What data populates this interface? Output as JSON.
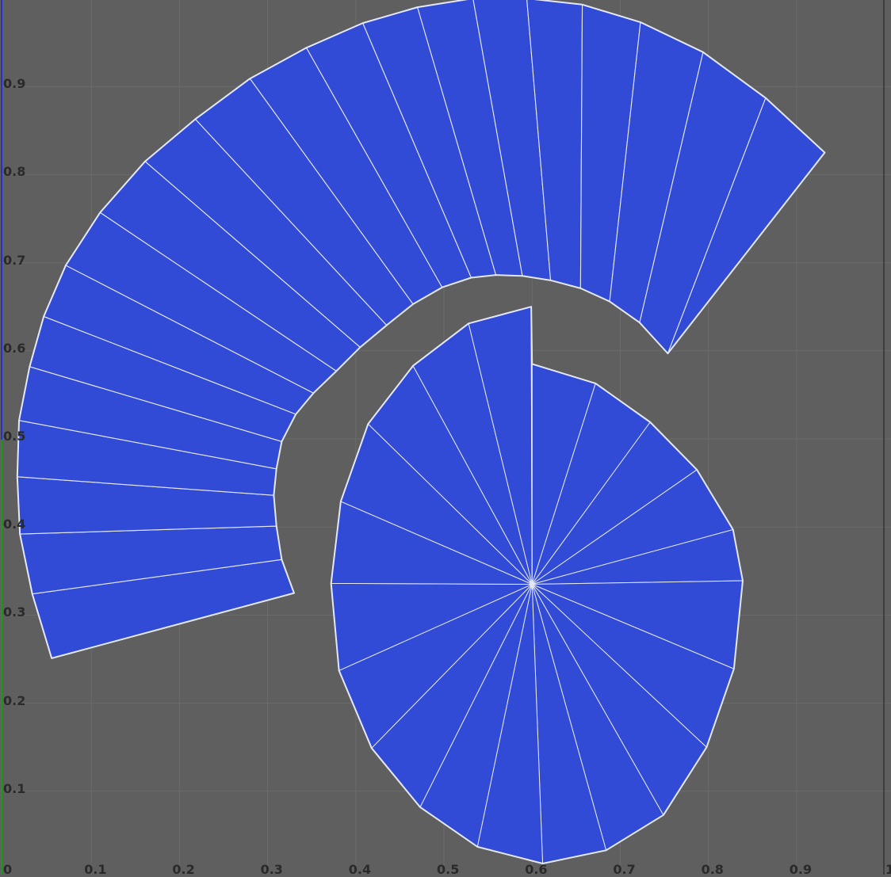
{
  "editor": {
    "title": "",
    "background_color": "#5f5f5f",
    "grid_color": "#6b6b6b",
    "mesh_fill_color": "#324bd6",
    "mesh_edge_color": "#e4e8f4",
    "u_axis_color": "#1a9a1a",
    "v_axis_color": "#2233cc",
    "axis_range": [
      0,
      1
    ]
  },
  "axes": {
    "x_ticks": [
      {
        "value": 0,
        "label": "0"
      },
      {
        "value": 0.1,
        "label": "0.1"
      },
      {
        "value": 0.2,
        "label": "0.2"
      },
      {
        "value": 0.3,
        "label": "0.3"
      },
      {
        "value": 0.4,
        "label": "0.4"
      },
      {
        "value": 0.5,
        "label": "0.5"
      },
      {
        "value": 0.6,
        "label": "0.6"
      },
      {
        "value": 0.7,
        "label": "0.7"
      },
      {
        "value": 0.8,
        "label": "0.8"
      },
      {
        "value": 0.9,
        "label": "0.9"
      }
    ],
    "y_ticks": [
      {
        "value": 0.1,
        "label": "0.1"
      },
      {
        "value": 0.2,
        "label": "0.2"
      },
      {
        "value": 0.3,
        "label": "0.3"
      },
      {
        "value": 0.4,
        "label": "0.4"
      },
      {
        "value": 0.5,
        "label": "0.5"
      },
      {
        "value": 0.6,
        "label": "0.6"
      },
      {
        "value": 0.7,
        "label": "0.7"
      },
      {
        "value": 0.8,
        "label": "0.8"
      },
      {
        "value": 0.9,
        "label": "0.9"
      }
    ],
    "right_edge_label": "1"
  },
  "uv_islands": {
    "cap_disc": {
      "name": "",
      "center_uv": [
        0.6,
        0.335
      ],
      "rim_uv": [
        [
          0.6,
          0.585
        ],
        [
          0.672,
          0.563
        ],
        [
          0.734,
          0.519
        ],
        [
          0.787,
          0.465
        ],
        [
          0.828,
          0.397
        ],
        [
          0.839,
          0.339
        ],
        [
          0.829,
          0.239
        ],
        [
          0.798,
          0.15
        ],
        [
          0.749,
          0.073
        ],
        [
          0.684,
          0.033
        ],
        [
          0.612,
          0.018
        ],
        [
          0.538,
          0.037
        ],
        [
          0.473,
          0.082
        ],
        [
          0.418,
          0.149
        ],
        [
          0.381,
          0.237
        ],
        [
          0.372,
          0.336
        ],
        [
          0.383,
          0.429
        ],
        [
          0.414,
          0.517
        ],
        [
          0.465,
          0.583
        ],
        [
          0.528,
          0.631
        ],
        [
          0.599,
          0.65
        ]
      ]
    },
    "side_strip": {
      "name": "",
      "outer_edge_uv": [
        [
          0.055,
          0.251
        ],
        [
          0.033,
          0.324
        ],
        [
          0.019,
          0.392
        ],
        [
          0.016,
          0.457
        ],
        [
          0.018,
          0.521
        ],
        [
          0.03,
          0.582
        ],
        [
          0.046,
          0.639
        ],
        [
          0.071,
          0.697
        ],
        [
          0.11,
          0.757
        ],
        [
          0.161,
          0.815
        ],
        [
          0.218,
          0.863
        ],
        [
          0.28,
          0.909
        ],
        [
          0.344,
          0.944
        ],
        [
          0.408,
          0.972
        ],
        [
          0.47,
          0.99
        ],
        [
          0.533,
          1.0
        ],
        [
          0.594,
          1.0
        ],
        [
          0.657,
          0.993
        ],
        [
          0.723,
          0.973
        ],
        [
          0.794,
          0.939
        ],
        [
          0.865,
          0.887
        ],
        [
          0.932,
          0.825
        ]
      ],
      "inner_edge_uv": [
        [
          0.33,
          0.325
        ],
        [
          0.316,
          0.363
        ],
        [
          0.31,
          0.401
        ],
        [
          0.307,
          0.436
        ],
        [
          0.31,
          0.466
        ],
        [
          0.316,
          0.497
        ],
        [
          0.332,
          0.528
        ],
        [
          0.352,
          0.552
        ],
        [
          0.378,
          0.577
        ],
        [
          0.405,
          0.604
        ],
        [
          0.435,
          0.629
        ],
        [
          0.465,
          0.653
        ],
        [
          0.498,
          0.672
        ],
        [
          0.531,
          0.683
        ],
        [
          0.559,
          0.686
        ],
        [
          0.589,
          0.685
        ],
        [
          0.621,
          0.68
        ],
        [
          0.655,
          0.671
        ],
        [
          0.688,
          0.656
        ],
        [
          0.722,
          0.632
        ],
        [
          0.754,
          0.597
        ]
      ],
      "end_edge_uv": [
        0.932,
        0.825
      ]
    }
  }
}
